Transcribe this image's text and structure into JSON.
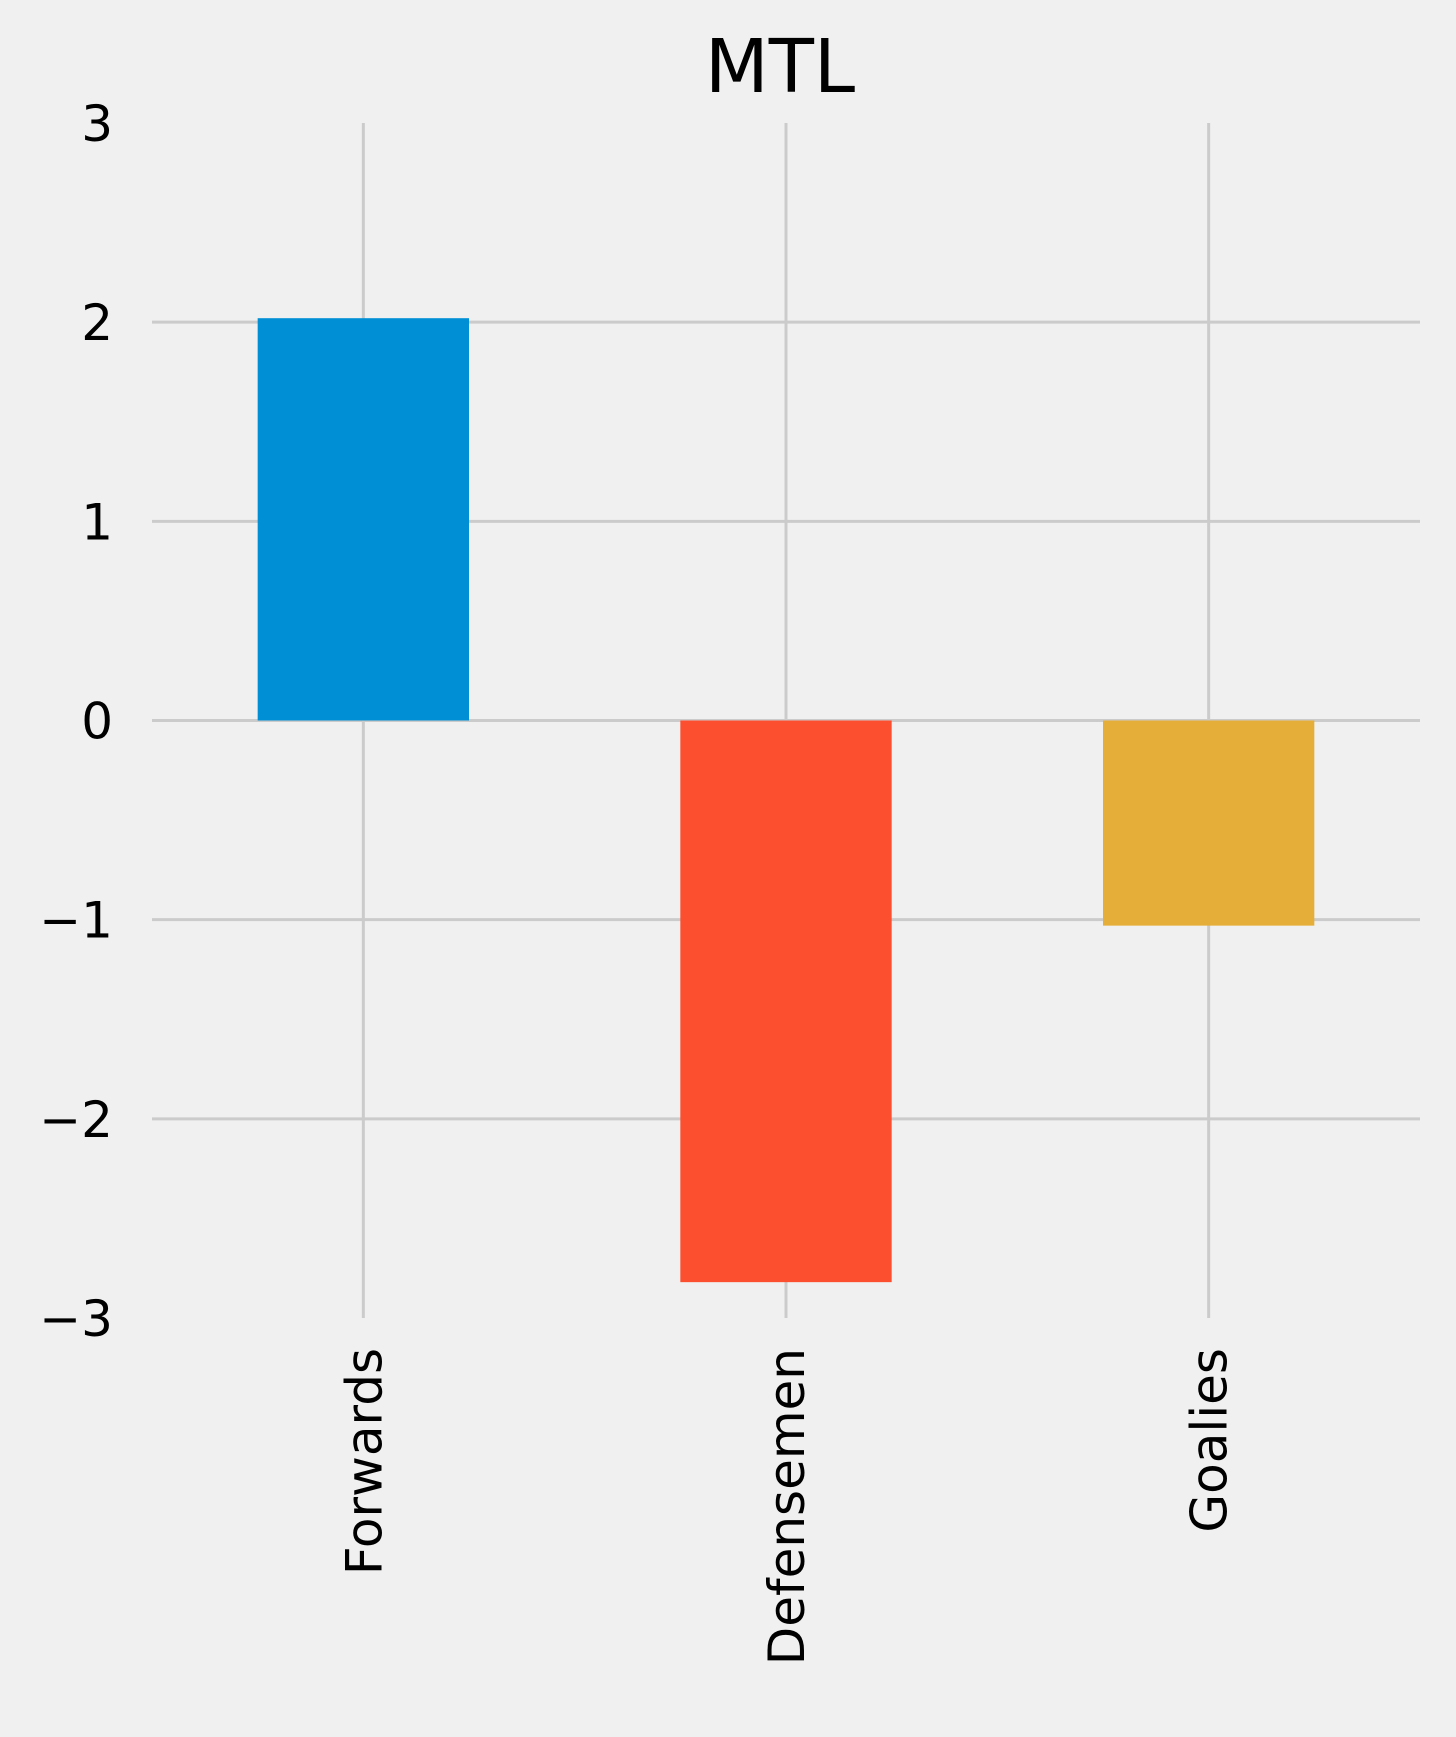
{
  "chart_data": {
    "type": "bar",
    "title": "MTL",
    "xlabel": "",
    "ylabel": "",
    "categories": [
      "Forwards",
      "Defensemen",
      "Goalies"
    ],
    "values": [
      2.02,
      -2.82,
      -1.03
    ],
    "colors": [
      "#008fd5",
      "#fc4f30",
      "#e5ae38"
    ],
    "ylim": [
      -3,
      3
    ],
    "yticks": [
      3,
      2,
      1,
      0,
      -1,
      -2,
      -3
    ],
    "ytick_labels": [
      "3",
      "2",
      "1",
      "0",
      "−1",
      "−2",
      "−3"
    ],
    "grid": true,
    "grid_color": "#cbcbcb",
    "background_color": "#f0f0f0"
  }
}
